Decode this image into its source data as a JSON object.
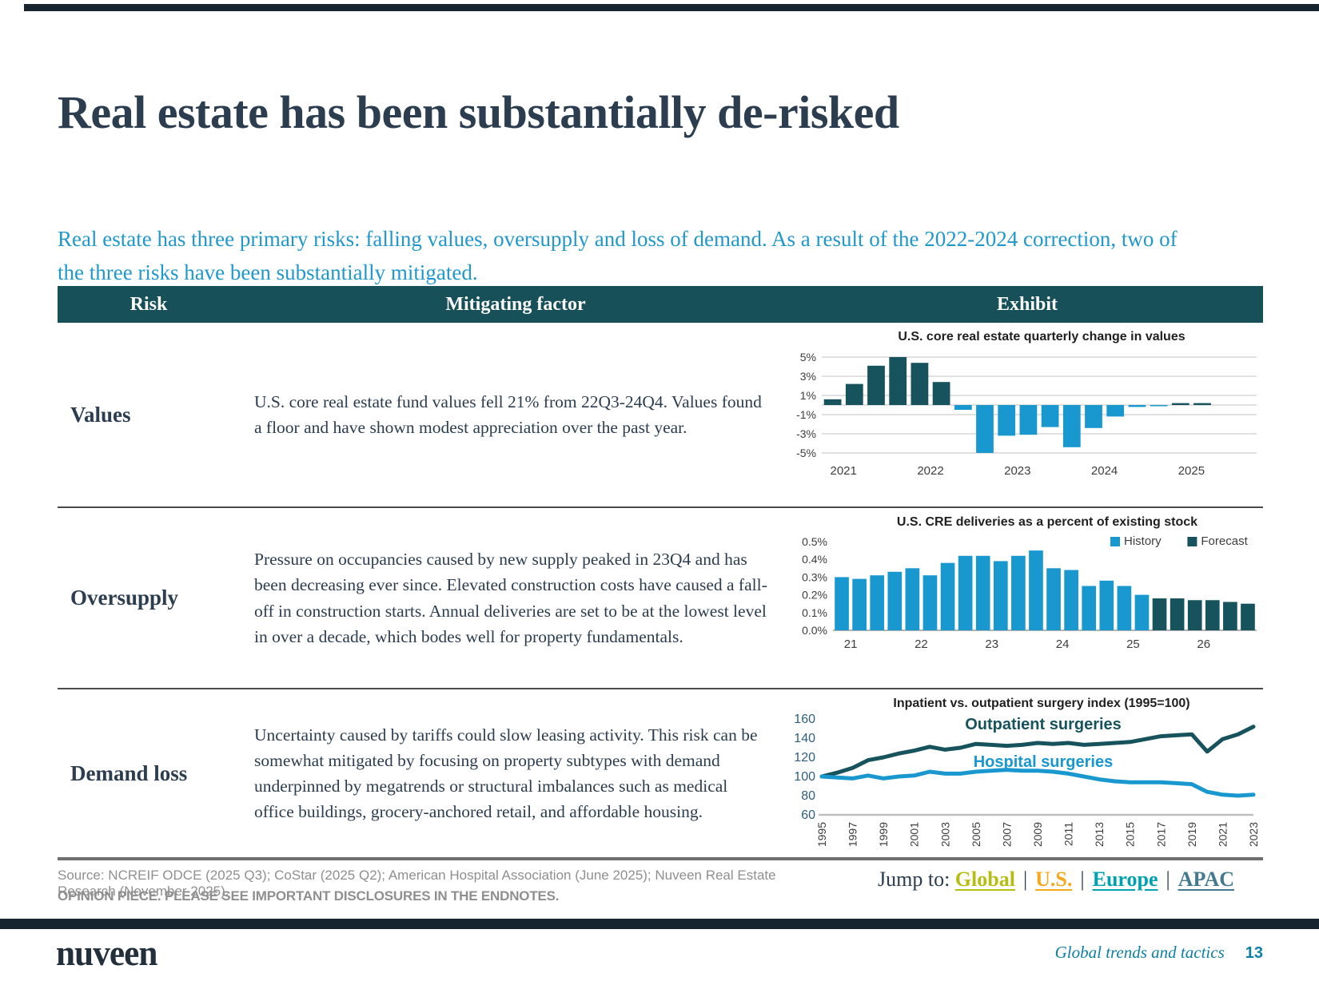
{
  "page": {
    "title": "Real estate has been substantially de-risked",
    "intro": "Real estate has three primary risks: falling values, oversupply and loss of demand. As a result of the 2022-2024 correction, two of the three risks have been substantially mitigated."
  },
  "table": {
    "headers": [
      "Risk",
      "Mitigating factor",
      "Exhibit"
    ],
    "rows": [
      {
        "risk": "Values",
        "factor": "U.S. core real estate fund values fell 21% from 22Q3-24Q4. Values found a floor and have shown modest appreciation over the past year."
      },
      {
        "risk": "Oversupply",
        "factor": "Pressure on occupancies caused by new supply peaked in 23Q4 and has been decreasing ever since. Elevated construction costs have caused a fall-off in construction starts. Annual deliveries are set to be at the lowest level in over a decade, which bodes well for property fundamentals."
      },
      {
        "risk": "Demand loss",
        "factor": "Uncertainty caused by tariffs could slow leasing activity. This risk can be somewhat mitigated by focusing on property subtypes with demand underpinned by megatrends or structural imbalances such as medical office buildings, grocery-anchored retail, and affordable housing."
      }
    ]
  },
  "chart_data": [
    {
      "type": "bar",
      "title": "U.S. core real estate quarterly change in values",
      "x_start": "2021Q1",
      "values": [
        0.6,
        2.2,
        4.1,
        5.0,
        4.4,
        2.4,
        -0.5,
        -5.0,
        -3.2,
        -3.1,
        -2.3,
        -4.4,
        -2.4,
        -1.2,
        -0.2,
        -0.1,
        0.2,
        0.2
      ],
      "group_labels": [
        "2021",
        "2022",
        "2023",
        "2024",
        "2025"
      ],
      "group_size": 4,
      "ylim": [
        -5.5,
        5.5
      ],
      "yticks": [
        5,
        3,
        1,
        -1,
        -3,
        -5
      ],
      "grid": true,
      "colors": {
        "positive": "#17535c",
        "negative": "#1898ce"
      }
    },
    {
      "type": "bar",
      "title": "U.S. CRE deliveries as a percent of existing stock",
      "x_start": "2021Q1",
      "values": [
        0.3,
        0.29,
        0.31,
        0.33,
        0.35,
        0.31,
        0.38,
        0.42,
        0.42,
        0.39,
        0.42,
        0.45,
        0.35,
        0.34,
        0.25,
        0.28,
        0.25,
        0.2,
        0.18,
        0.18,
        0.17,
        0.17,
        0.16,
        0.15
      ],
      "history_count": 18,
      "group_labels": [
        "21",
        "22",
        "23",
        "24",
        "25",
        "26"
      ],
      "group_size": 4,
      "ylim": [
        0,
        0.5
      ],
      "yticks": [
        0,
        0.1,
        0.2,
        0.3,
        0.4,
        0.5
      ],
      "grid": false,
      "colors": {
        "history": "#1898ce",
        "forecast": "#17535c"
      },
      "legend": [
        {
          "label": "History",
          "color": "#1898ce"
        },
        {
          "label": "Forecast",
          "color": "#17535c"
        }
      ],
      "legend_position": "top-right"
    },
    {
      "type": "line",
      "title": "Inpatient vs. outpatient surgery index (1995=100)",
      "years": [
        1995,
        1996,
        1997,
        1998,
        1999,
        2000,
        2001,
        2002,
        2003,
        2004,
        2005,
        2006,
        2007,
        2008,
        2009,
        2010,
        2011,
        2012,
        2013,
        2014,
        2015,
        2016,
        2017,
        2018,
        2019,
        2020,
        2021,
        2022,
        2023
      ],
      "series": [
        {
          "name": "Outpatient surgeries",
          "color": "#17535c",
          "values": [
            100,
            104,
            109,
            117,
            120,
            124,
            127,
            131,
            128,
            130,
            134,
            133,
            132,
            133,
            135,
            134,
            135,
            133,
            134,
            135,
            136,
            139,
            142,
            143,
            144,
            126,
            139,
            144,
            152
          ]
        },
        {
          "name": "Hospital surgeries",
          "color": "#1898ce",
          "values": [
            100,
            99,
            98,
            101,
            98,
            100,
            101,
            105,
            103,
            103,
            105,
            106,
            107,
            106,
            106,
            105,
            103,
            100,
            97,
            95,
            94,
            94,
            94,
            93,
            92,
            84,
            81,
            80,
            81
          ]
        }
      ],
      "ylim": [
        60,
        160
      ],
      "yticks": [
        60,
        80,
        100,
        120,
        140,
        160
      ],
      "xtick_step": 2,
      "grid": false
    }
  ],
  "footer": {
    "source": "Source: NCREIF ODCE (2025 Q3); CoStar (2025 Q2); American Hospital Association (June 2025); Nuveen Real Estate Research (November 2025).",
    "opinion": "OPINION PIECE. PLEASE SEE IMPORTANT DISCLOSURES IN THE ENDNOTES.",
    "jump_label": "Jump to:",
    "separator": "|",
    "links": [
      {
        "label": "Global",
        "color": "#b5bd10"
      },
      {
        "label": "U.S.",
        "color": "#f5a81c"
      },
      {
        "label": "Europe",
        "color": "#00a1b1"
      },
      {
        "label": "APAC",
        "color": "#43798e"
      }
    ]
  },
  "brand": {
    "logo": "nuveen",
    "tagline": "Global trends and tactics",
    "page_number": "13"
  }
}
